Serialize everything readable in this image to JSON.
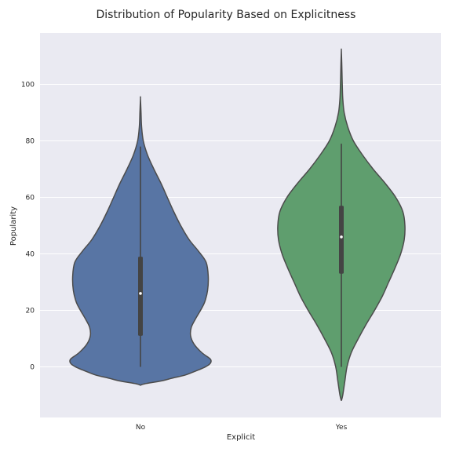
{
  "chart_data": {
    "type": "violin",
    "title": "Distribution of Popularity Based on Explicitness",
    "xlabel": "Explicit",
    "ylabel": "Popularity",
    "ylim": [
      -18,
      117
    ],
    "yticks": [
      0,
      20,
      40,
      60,
      80,
      100
    ],
    "grid": true,
    "categories": [
      "No",
      "Yes"
    ],
    "series": [
      {
        "category": "No",
        "color": "#5875a4",
        "min": 0,
        "q1": 11,
        "median": 26,
        "q3": 39,
        "max": 78,
        "kde_range": [
          -6.5,
          95
        ],
        "density_profile": [
          [
            -6.5,
            0.0
          ],
          [
            -6,
            0.06
          ],
          [
            -5,
            0.29
          ],
          [
            -4,
            0.45
          ],
          [
            -3,
            0.62
          ],
          [
            -2,
            0.73
          ],
          [
            -1,
            0.83
          ],
          [
            0,
            0.92
          ],
          [
            1,
            0.98
          ],
          [
            2,
            1.0
          ],
          [
            3,
            0.98
          ],
          [
            5,
            0.87
          ],
          [
            8,
            0.76
          ],
          [
            11,
            0.71
          ],
          [
            14,
            0.72
          ],
          [
            17,
            0.78
          ],
          [
            20,
            0.85
          ],
          [
            23,
            0.91
          ],
          [
            27,
            0.95
          ],
          [
            32,
            0.96
          ],
          [
            37,
            0.93
          ],
          [
            41,
            0.82
          ],
          [
            45,
            0.69
          ],
          [
            50,
            0.57
          ],
          [
            55,
            0.47
          ],
          [
            60,
            0.38
          ],
          [
            65,
            0.29
          ],
          [
            70,
            0.19
          ],
          [
            75,
            0.1
          ],
          [
            80,
            0.04
          ],
          [
            85,
            0.016
          ],
          [
            90,
            0.008
          ],
          [
            95,
            0.0
          ]
        ]
      },
      {
        "category": "Yes",
        "color": "#5f9e6e",
        "min": 0,
        "q1": 33,
        "median": 46,
        "q3": 57,
        "max": 79,
        "kde_range": [
          -12,
          112
        ],
        "density_profile": [
          [
            -12,
            0.0
          ],
          [
            -10,
            0.02
          ],
          [
            -5,
            0.05
          ],
          [
            0,
            0.08
          ],
          [
            5,
            0.14
          ],
          [
            10,
            0.24
          ],
          [
            15,
            0.35
          ],
          [
            20,
            0.47
          ],
          [
            25,
            0.58
          ],
          [
            30,
            0.67
          ],
          [
            35,
            0.76
          ],
          [
            40,
            0.84
          ],
          [
            45,
            0.89
          ],
          [
            50,
            0.9
          ],
          [
            55,
            0.87
          ],
          [
            60,
            0.77
          ],
          [
            65,
            0.62
          ],
          [
            70,
            0.45
          ],
          [
            75,
            0.3
          ],
          [
            80,
            0.17
          ],
          [
            85,
            0.09
          ],
          [
            90,
            0.04
          ],
          [
            95,
            0.02
          ],
          [
            100,
            0.013
          ],
          [
            105,
            0.008
          ],
          [
            108,
            0.005
          ],
          [
            112,
            0.0
          ]
        ]
      }
    ]
  }
}
